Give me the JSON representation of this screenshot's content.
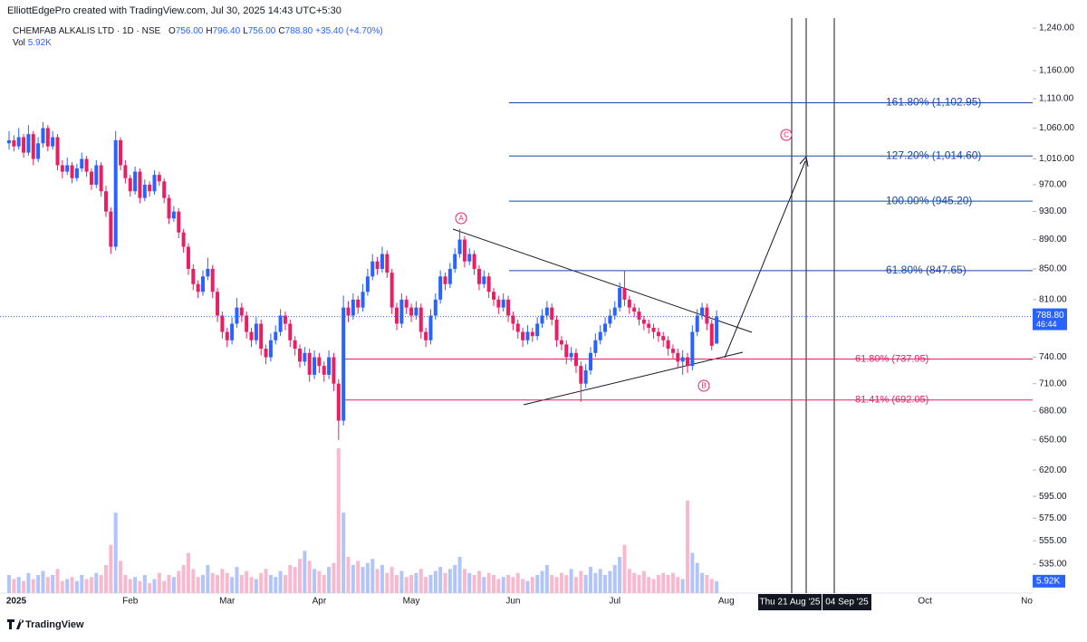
{
  "header": {
    "credit": "ElliottEdgePro created with TradingView.com, Jul 30, 2025 14:43 UTC+5:30",
    "symbol": "CHEMFAB ALKALIS LTD · 1D · NSE",
    "ohlc": [
      {
        "key": "O",
        "value": "756.00"
      },
      {
        "key": "H",
        "value": "796.40"
      },
      {
        "key": "L",
        "value": "756.00"
      },
      {
        "key": "C",
        "value": "788.80"
      }
    ],
    "change": "+35.40 (+4.70%)",
    "vol_key": "Vol",
    "vol_value": "5.92K"
  },
  "footer": {
    "brand": "TradingView"
  },
  "chart_data": {
    "type": "candlestick",
    "log_scale": true,
    "colors": {
      "up": "#2962ff",
      "down": "#e91e63",
      "up_volume": "#b2c5f9",
      "down_volume": "#f8b9cf"
    },
    "ylim": [
      535,
      1240
    ],
    "yticks": [
      {
        "value": 1240,
        "label": "1,240.00"
      },
      {
        "value": 1160,
        "label": "1,160.00"
      },
      {
        "value": 1110,
        "label": "1,110.00"
      },
      {
        "value": 1060,
        "label": "1,060.00"
      },
      {
        "value": 1010,
        "label": "1,010.00"
      },
      {
        "value": 970,
        "label": "970.00"
      },
      {
        "value": 930,
        "label": "930.00"
      },
      {
        "value": 890,
        "label": "890.00"
      },
      {
        "value": 850,
        "label": "850.00"
      },
      {
        "value": 810,
        "label": "810.00"
      },
      {
        "value": 740,
        "label": "740.00"
      },
      {
        "value": 710,
        "label": "710.00"
      },
      {
        "value": 680,
        "label": "680.00"
      },
      {
        "value": 650,
        "label": "650.00"
      },
      {
        "value": 620,
        "label": "620.00"
      },
      {
        "value": 595,
        "label": "595.00"
      },
      {
        "value": 575,
        "label": "575.00"
      },
      {
        "value": 555,
        "label": "555.00"
      },
      {
        "value": 535,
        "label": "535.00"
      }
    ],
    "time_axis": [
      "2025",
      null,
      null,
      null,
      null,
      null,
      null,
      null,
      null,
      null,
      null,
      null,
      null,
      null,
      null,
      null,
      null,
      null,
      null,
      null,
      null,
      null,
      null,
      null,
      null,
      "Feb",
      null,
      null,
      null,
      null,
      null,
      null,
      null,
      null,
      null,
      null,
      null,
      null,
      null,
      null,
      null,
      null,
      null,
      null,
      null,
      "Mar",
      null,
      null,
      null,
      null,
      null,
      null,
      null,
      null,
      null,
      null,
      null,
      null,
      null,
      null,
      null,
      null,
      null,
      null,
      "Apr",
      null,
      null,
      null,
      null,
      null,
      null,
      null,
      null,
      null,
      null,
      null,
      null,
      null,
      null,
      null,
      null,
      null,
      null,
      "May",
      null,
      null,
      null,
      null,
      null,
      null,
      null,
      null,
      null,
      null,
      null,
      null,
      null,
      null,
      null,
      null,
      null,
      null,
      null,
      null,
      "Jun",
      null,
      null,
      null,
      null,
      null,
      null,
      null,
      null,
      null,
      null,
      null,
      null,
      null,
      null,
      null,
      null,
      null,
      null,
      null,
      null,
      "Jul",
      null,
      null,
      null,
      null,
      null,
      null,
      null,
      null,
      null,
      null,
      null,
      null,
      null,
      null,
      null,
      null,
      null,
      null,
      null,
      null,
      null,
      null,
      "Aug",
      null,
      null,
      null,
      null,
      null,
      null,
      null,
      null,
      null,
      null,
      null,
      null,
      null,
      null,
      null,
      null,
      null,
      null,
      null,
      null,
      null,
      null,
      null,
      null,
      null,
      null,
      null,
      null,
      null,
      null,
      null,
      null,
      null,
      null,
      null,
      null,
      null,
      null,
      null,
      null,
      "Oct",
      null,
      null,
      null,
      null,
      null,
      null,
      null,
      null,
      null,
      null,
      null,
      null,
      null,
      null,
      null,
      null,
      null,
      null,
      null,
      null,
      "No"
    ],
    "candles": [
      [
        1035,
        1055,
        1025,
        1040
      ],
      [
        1040,
        1048,
        1022,
        1030
      ],
      [
        1030,
        1060,
        1025,
        1045
      ],
      [
        1045,
        1050,
        1012,
        1020
      ],
      [
        1020,
        1065,
        1015,
        1050
      ],
      [
        1050,
        1055,
        1000,
        1010
      ],
      [
        1010,
        1045,
        1005,
        1035
      ],
      [
        1035,
        1070,
        1028,
        1060
      ],
      [
        1060,
        1065,
        1022,
        1030
      ],
      [
        1030,
        1055,
        1025,
        1045
      ],
      [
        1045,
        1050,
        992,
        1000
      ],
      [
        1000,
        1008,
        980,
        990
      ],
      [
        990,
        1012,
        985,
        1000
      ],
      [
        1000,
        1005,
        972,
        980
      ],
      [
        980,
        1002,
        975,
        995
      ],
      [
        995,
        1020,
        990,
        1010
      ],
      [
        1010,
        1015,
        982,
        990
      ],
      [
        990,
        995,
        962,
        970
      ],
      [
        970,
        1008,
        965,
        1000
      ],
      [
        1000,
        1005,
        952,
        960
      ],
      [
        960,
        968,
        922,
        930
      ],
      [
        930,
        936,
        870,
        880
      ],
      [
        880,
        1055,
        875,
        1040
      ],
      [
        1040,
        1045,
        992,
        1000
      ],
      [
        1000,
        1008,
        972,
        980
      ],
      [
        980,
        985,
        952,
        960
      ],
      [
        960,
        998,
        955,
        990
      ],
      [
        990,
        995,
        942,
        950
      ],
      [
        950,
        978,
        945,
        970
      ],
      [
        970,
        975,
        952,
        960
      ],
      [
        960,
        992,
        955,
        985
      ],
      [
        985,
        990,
        968,
        975
      ],
      [
        975,
        980,
        942,
        950
      ],
      [
        950,
        955,
        912,
        920
      ],
      [
        920,
        938,
        915,
        930
      ],
      [
        930,
        935,
        892,
        900
      ],
      [
        900,
        905,
        872,
        880
      ],
      [
        880,
        885,
        842,
        850
      ],
      [
        850,
        856,
        822,
        830
      ],
      [
        830,
        835,
        812,
        820
      ],
      [
        820,
        848,
        815,
        840
      ],
      [
        840,
        865,
        835,
        850
      ],
      [
        850,
        855,
        812,
        820
      ],
      [
        820,
        825,
        782,
        790
      ],
      [
        790,
        795,
        762,
        770
      ],
      [
        770,
        775,
        752,
        760
      ],
      [
        760,
        788,
        755,
        780
      ],
      [
        780,
        812,
        775,
        800
      ],
      [
        800,
        806,
        782,
        790
      ],
      [
        790,
        795,
        762,
        770
      ],
      [
        770,
        775,
        752,
        760
      ],
      [
        760,
        788,
        755,
        780
      ],
      [
        780,
        785,
        742,
        750
      ],
      [
        750,
        755,
        732,
        740
      ],
      [
        740,
        768,
        735,
        760
      ],
      [
        760,
        778,
        755,
        770
      ],
      [
        770,
        798,
        765,
        790
      ],
      [
        790,
        795,
        772,
        780
      ],
      [
        780,
        785,
        752,
        760
      ],
      [
        760,
        765,
        742,
        750
      ],
      [
        750,
        755,
        728,
        735
      ],
      [
        735,
        752,
        730,
        745
      ],
      [
        745,
        750,
        712,
        720
      ],
      [
        720,
        748,
        715,
        740
      ],
      [
        740,
        745,
        722,
        730
      ],
      [
        730,
        735,
        712,
        720
      ],
      [
        720,
        748,
        715,
        740
      ],
      [
        740,
        745,
        702,
        710
      ],
      [
        710,
        715,
        650,
        670
      ],
      [
        670,
        815,
        665,
        800
      ],
      [
        800,
        808,
        782,
        790
      ],
      [
        790,
        818,
        785,
        810
      ],
      [
        810,
        815,
        792,
        800
      ],
      [
        800,
        830,
        795,
        820
      ],
      [
        820,
        850,
        815,
        840
      ],
      [
        840,
        870,
        835,
        860
      ],
      [
        860,
        866,
        842,
        850
      ],
      [
        850,
        880,
        845,
        870
      ],
      [
        870,
        875,
        838,
        845
      ],
      [
        845,
        850,
        792,
        800
      ],
      [
        800,
        806,
        772,
        780
      ],
      [
        780,
        818,
        775,
        810
      ],
      [
        810,
        815,
        792,
        800
      ],
      [
        800,
        805,
        782,
        790
      ],
      [
        790,
        808,
        785,
        800
      ],
      [
        800,
        805,
        762,
        770
      ],
      [
        770,
        775,
        752,
        760
      ],
      [
        760,
        798,
        755,
        790
      ],
      [
        790,
        818,
        785,
        810
      ],
      [
        810,
        848,
        805,
        840
      ],
      [
        840,
        845,
        822,
        830
      ],
      [
        830,
        858,
        825,
        850
      ],
      [
        850,
        878,
        845,
        870
      ],
      [
        870,
        905,
        865,
        890
      ],
      [
        890,
        895,
        852,
        860
      ],
      [
        860,
        878,
        855,
        870
      ],
      [
        870,
        875,
        842,
        850
      ],
      [
        850,
        855,
        822,
        830
      ],
      [
        830,
        848,
        825,
        840
      ],
      [
        840,
        845,
        812,
        820
      ],
      [
        820,
        825,
        802,
        810
      ],
      [
        810,
        815,
        792,
        800
      ],
      [
        800,
        818,
        795,
        810
      ],
      [
        810,
        815,
        782,
        790
      ],
      [
        790,
        795,
        772,
        780
      ],
      [
        780,
        785,
        762,
        770
      ],
      [
        770,
        775,
        752,
        760
      ],
      [
        760,
        778,
        755,
        770
      ],
      [
        770,
        775,
        758,
        765
      ],
      [
        765,
        788,
        760,
        780
      ],
      [
        780,
        798,
        775,
        790
      ],
      [
        790,
        808,
        785,
        800
      ],
      [
        800,
        805,
        778,
        785
      ],
      [
        785,
        790,
        752,
        760
      ],
      [
        760,
        765,
        748,
        755
      ],
      [
        755,
        760,
        732,
        740
      ],
      [
        740,
        752,
        735,
        745
      ],
      [
        745,
        750,
        722,
        730
      ],
      [
        730,
        735,
        690,
        710
      ],
      [
        710,
        732,
        705,
        725
      ],
      [
        725,
        752,
        720,
        745
      ],
      [
        745,
        768,
        740,
        760
      ],
      [
        760,
        778,
        755,
        770
      ],
      [
        770,
        788,
        765,
        780
      ],
      [
        780,
        798,
        775,
        790
      ],
      [
        790,
        808,
        785,
        800
      ],
      [
        800,
        832,
        795,
        825
      ],
      [
        825,
        848,
        802,
        810
      ],
      [
        810,
        815,
        792,
        800
      ],
      [
        800,
        805,
        788,
        795
      ],
      [
        795,
        800,
        778,
        785
      ],
      [
        785,
        790,
        772,
        780
      ],
      [
        780,
        785,
        768,
        775
      ],
      [
        775,
        780,
        762,
        770
      ],
      [
        770,
        775,
        758,
        765
      ],
      [
        765,
        770,
        752,
        760
      ],
      [
        760,
        765,
        742,
        750
      ],
      [
        750,
        755,
        738,
        745
      ],
      [
        745,
        750,
        728,
        735
      ],
      [
        735,
        748,
        720,
        740
      ],
      [
        740,
        745,
        722,
        730
      ],
      [
        730,
        778,
        725,
        770
      ],
      [
        770,
        798,
        765,
        790
      ],
      [
        790,
        806,
        785,
        800
      ],
      [
        800,
        805,
        772,
        780
      ],
      [
        780,
        785,
        748,
        753.4
      ],
      [
        756,
        796.4,
        756,
        788.8
      ]
    ],
    "volume": [
      9000,
      7000,
      8000,
      6000,
      10000,
      7000,
      9000,
      11000,
      8000,
      9000,
      12000,
      6000,
      7000,
      8000,
      6000,
      9000,
      7000,
      8000,
      10000,
      9000,
      14000,
      24000,
      40000,
      16000,
      9000,
      7000,
      8000,
      6000,
      9000,
      5000,
      7000,
      10000,
      6000,
      9000,
      8000,
      11000,
      14000,
      20000,
      12000,
      8000,
      9000,
      14000,
      10000,
      9000,
      12000,
      10000,
      8000,
      13000,
      9000,
      11000,
      8000,
      7000,
      10000,
      12000,
      9000,
      8000,
      11000,
      9000,
      14000,
      13000,
      17000,
      21000,
      16000,
      12000,
      11000,
      9000,
      13000,
      15000,
      72000,
      40000,
      18000,
      14000,
      16000,
      13000,
      15000,
      17000,
      12000,
      14000,
      10000,
      13000,
      9000,
      11000,
      8000,
      9000,
      10000,
      12000,
      8000,
      9000,
      11000,
      13000,
      10000,
      12000,
      14000,
      18000,
      12000,
      10000,
      9000,
      11000,
      8000,
      10000,
      9000,
      7000,
      8000,
      9000,
      8000,
      10000,
      7000,
      6000,
      8000,
      9000,
      11000,
      14000,
      9000,
      8000,
      10000,
      9000,
      12000,
      8000,
      11000,
      9000,
      13000,
      10000,
      12000,
      9000,
      11000,
      14000,
      18000,
      24000,
      12000,
      10000,
      9000,
      11000,
      8000,
      7000,
      9000,
      10000,
      9000,
      10000,
      8000,
      7000,
      46000,
      20000,
      15000,
      10000,
      9000,
      7000,
      5920
    ],
    "volume_lim": [
      0,
      72000
    ],
    "price_badge": {
      "price": "788.80",
      "countdown": "46:44"
    },
    "volume_badge": "5.92K",
    "fib_levels": [
      {
        "label": "161.80% (1,102.95)",
        "value": 1102.95,
        "color": "#1848a8"
      },
      {
        "label": "127.20% (1,014.60)",
        "value": 1014.6,
        "color": "#1848a8"
      },
      {
        "label": "100.00% (945.20)",
        "value": 945.2,
        "color": "#1848a8"
      },
      {
        "label": "61.80% (847.65)",
        "value": 847.65,
        "color": "#1848a8"
      },
      {
        "label": "61.80% (737.95)",
        "value": 737.95,
        "color": "#e91e63"
      },
      {
        "label": "81.41% (692.05)",
        "value": 692.05,
        "color": "#e91e63"
      }
    ],
    "wave_labels": [
      "A",
      "B",
      "C"
    ],
    "date_badges": [
      "Thu 21 Aug '25",
      "04 Sep '25"
    ]
  }
}
